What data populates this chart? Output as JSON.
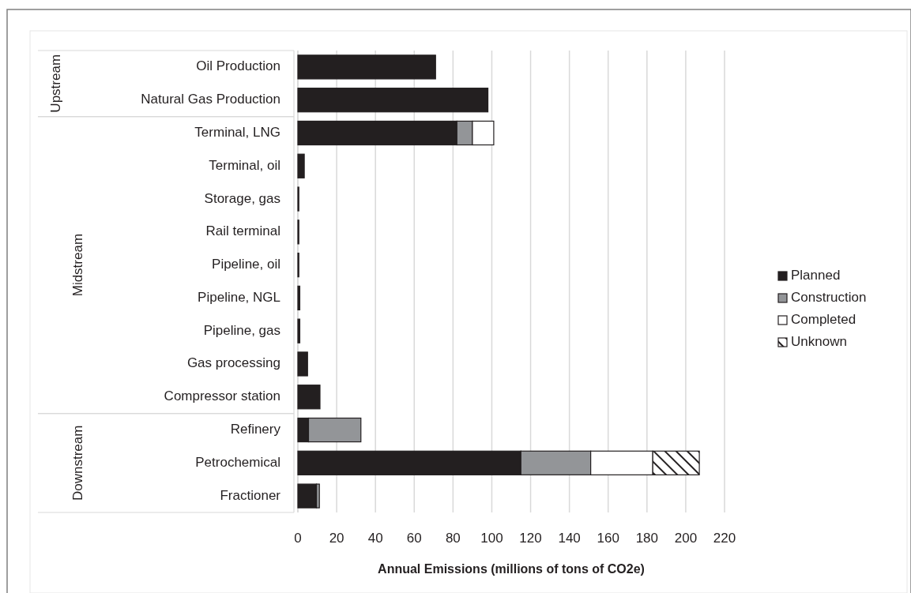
{
  "chart_data": {
    "type": "bar",
    "orientation": "horizontal",
    "stacked": true,
    "xlabel": "Annual Emissions (millions of tons of CO2e)",
    "categories": [
      "Oil Production",
      "Natural Gas Production",
      "Terminal, LNG",
      "Terminal, oil",
      "Storage, gas",
      "Rail terminal",
      "Pipeline, oil",
      "Pipeline, NGL",
      "Pipeline, gas",
      "Gas processing",
      "Compressor station",
      "Refinery",
      "Petrochemical",
      "Fractioner"
    ],
    "series": [
      {
        "name": "Planned",
        "color": "#231f20",
        "values": [
          71,
          98,
          82,
          3.3,
          0.5,
          0.5,
          0.5,
          1,
          1,
          5,
          11.4,
          5.5,
          115,
          9.6
        ]
      },
      {
        "name": "Construction",
        "color": "#939598",
        "values": [
          0,
          0,
          8,
          0,
          0,
          0,
          0,
          0,
          0,
          0,
          0,
          27,
          36,
          1.5
        ]
      },
      {
        "name": "Completed",
        "color": "#ffffff",
        "values": [
          0,
          0,
          11,
          0,
          0,
          0,
          0,
          0,
          0,
          0,
          0,
          0,
          32,
          0
        ]
      },
      {
        "name": "Unknown",
        "color": "#231f20",
        "values": [
          0,
          0,
          0,
          0,
          0,
          0,
          0,
          0,
          0,
          0,
          0,
          0,
          24,
          0
        ]
      }
    ],
    "annotations": [
      "Upstream",
      "Midstream",
      "Downstream"
    ],
    "xlim": [
      0,
      220
    ],
    "xticks": [
      0,
      20,
      40,
      60,
      80,
      100,
      120,
      140,
      160,
      180,
      200,
      220
    ],
    "grid": "x",
    "legend": "right"
  }
}
